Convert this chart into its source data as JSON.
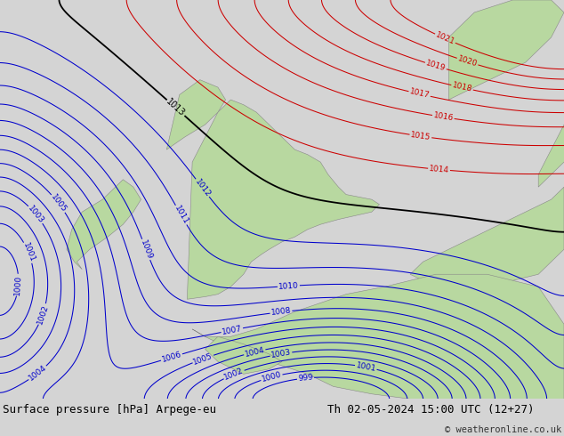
{
  "title_left": "Surface pressure [hPa] Arpege-eu",
  "title_right": "Th 02-05-2024 15:00 UTC (12+27)",
  "copyright": "© weatheronline.co.uk",
  "bg_color": "#d4d4d4",
  "land_color": "#b8d8a0",
  "land_edge_color": "#888888",
  "contour_color_low": "#0000cc",
  "contour_color_high": "#cc0000",
  "contour_color_mid": "#000000",
  "footer_bg": "#e0e0e0",
  "title_fontsize": 9,
  "copyright_fontsize": 7.5,
  "label_fontsize": 6.5
}
